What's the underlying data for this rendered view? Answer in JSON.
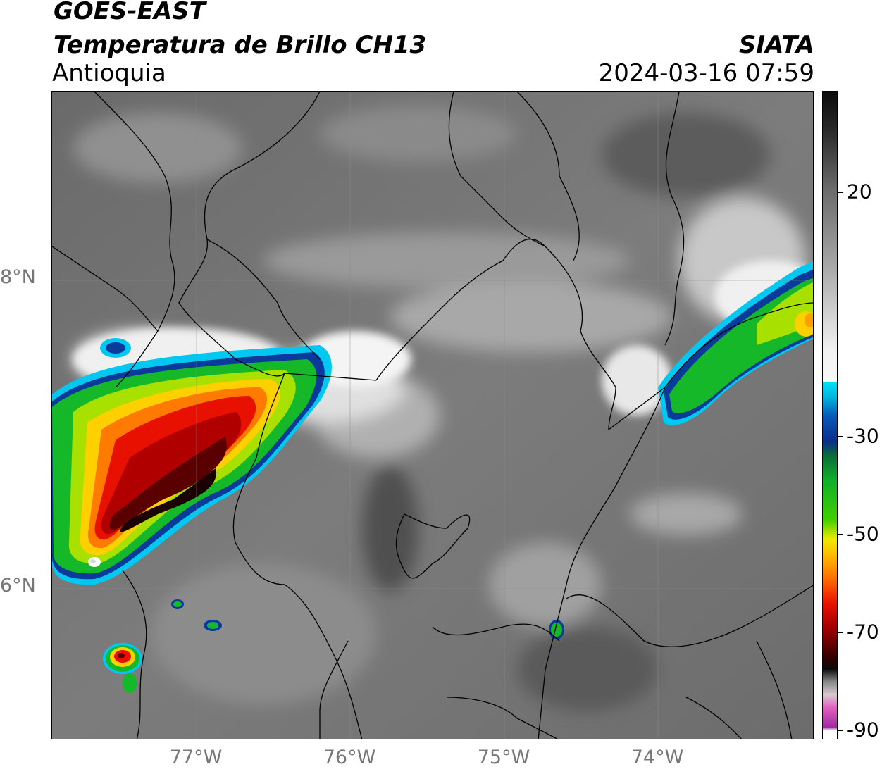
{
  "header": {
    "satellite": "GOES-EAST",
    "product": "Temperatura de Brillo CH13",
    "region": "Antioquia",
    "agency": "SIATA",
    "datetime": "2024-03-16 07:59"
  },
  "axes": {
    "latitude_labels": [
      "8°N",
      "6°N"
    ],
    "longitude_labels": [
      "77°W",
      "76°W",
      "75°W",
      "74°W"
    ]
  },
  "colorbar": {
    "tick_labels": [
      "20",
      "-30",
      "-50",
      "-70",
      "-90"
    ],
    "tick_values": [
      20,
      -30,
      -50,
      -70,
      -90
    ],
    "range": [
      -90,
      40
    ],
    "palette": {
      "warm_gray_top": "#1a1a1a",
      "gray_mid": "#a0a0a0",
      "white": "#f2f2f2",
      "cyan": "#00d2f0",
      "blue": "#0a2e8a",
      "green": "#10c020",
      "yellow": "#f0e000",
      "orange": "#ff7a00",
      "red": "#e00000",
      "dark_red": "#3a0000",
      "black": "#0a0a0a",
      "pink": "#e060c0",
      "purple": "#9a1a9a"
    }
  },
  "map_features": {
    "cloud_systems": [
      "pacific-convective-system",
      "northeast-convective-band",
      "small-storm-cells"
    ]
  }
}
